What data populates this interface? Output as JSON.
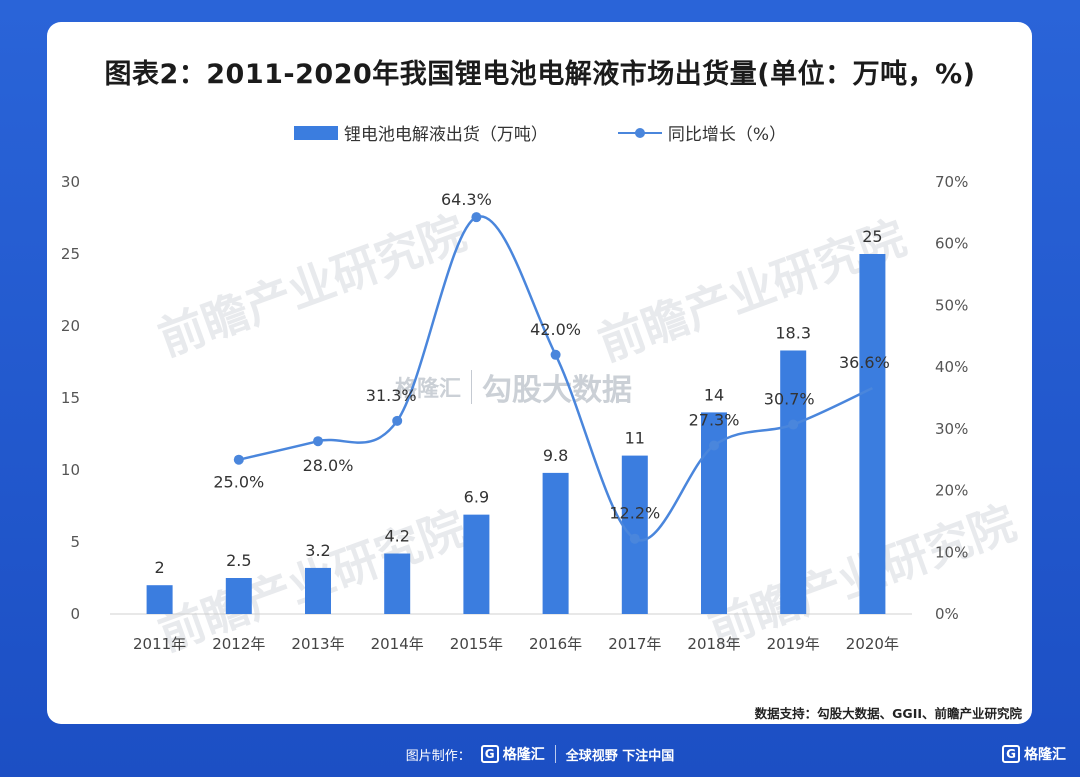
{
  "title": "图表2：2011-2020年我国锂电池电解液市场出货量(单位：万吨，%)",
  "legend": {
    "bar_label": "锂电池电解液出货（万吨）",
    "line_label": "同比增长（%）"
  },
  "source": "数据支持：勾股大数据、GGII、前瞻产业研究院",
  "footer": {
    "made_by": "图片制作：",
    "brand": "格隆汇",
    "slogan": "全球视野 下注中国",
    "corner_brand": "格隆汇"
  },
  "watermarks": {
    "qianzhan": "前瞻产业研究院",
    "center_brand": "格隆汇",
    "center_data": "勾股大数据"
  },
  "colors": {
    "bar": "#3b7ddf",
    "line": "#4a86dc",
    "frame": "#1f53c8"
  },
  "chart_data": {
    "type": "bar",
    "title": "图表2：2011-2020年我国锂电池电解液市场出货量(单位：万吨，%)",
    "categories": [
      "2011年",
      "2012年",
      "2013年",
      "2014年",
      "2015年",
      "2016年",
      "2017年",
      "2018年",
      "2019年",
      "2020年"
    ],
    "series": [
      {
        "name": "锂电池电解液出货（万吨）",
        "type": "bar",
        "axis": "left",
        "values": [
          2,
          2.5,
          3.2,
          4.2,
          6.9,
          9.8,
          11,
          14,
          18.3,
          25
        ],
        "labels": [
          "2",
          "2.5",
          "3.2",
          "4.2",
          "6.9",
          "9.8",
          "11",
          "14",
          "18.3",
          "25"
        ]
      },
      {
        "name": "同比增长（%）",
        "type": "line",
        "axis": "right",
        "values": [
          null,
          25.0,
          28.0,
          31.3,
          64.3,
          42.0,
          12.2,
          27.3,
          30.7,
          36.6
        ],
        "labels": [
          null,
          "25.0%",
          "28.0%",
          "31.3%",
          "64.3%",
          "42.0%",
          "12.2%",
          "27.3%",
          "30.7%",
          "36.6%"
        ]
      }
    ],
    "y_left": {
      "min": 0,
      "max": 30,
      "ticks": [
        "0",
        "5",
        "10",
        "15",
        "20",
        "25",
        "30"
      ]
    },
    "y_right": {
      "min": 0,
      "max": 70,
      "ticks": [
        "0%",
        "10%",
        "20%",
        "30%",
        "40%",
        "50%",
        "60%",
        "70%"
      ]
    },
    "grid": false,
    "legend_position": "top-center"
  }
}
